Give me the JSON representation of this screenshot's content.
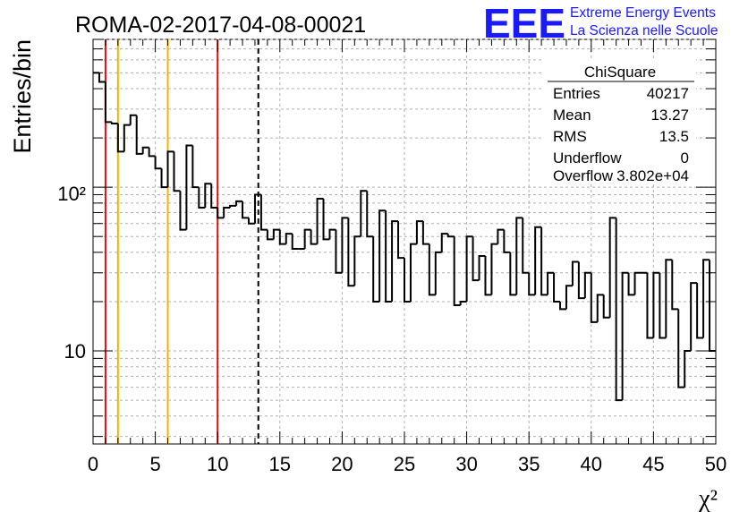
{
  "header": {
    "title": "ROMA-02-2017-04-08-00021",
    "logo_text": "EEE",
    "logo_line1": "Extreme Energy Events",
    "logo_line2": "La Scienza nelle Scuole"
  },
  "stats": {
    "name": "ChiSquare",
    "rows": [
      {
        "label": "Entries",
        "value": "40217"
      },
      {
        "label": "Mean",
        "value": "13.27"
      },
      {
        "label": "RMS",
        "value": "13.5"
      },
      {
        "label": "Underflow",
        "value": "0"
      },
      {
        "label": "Overflow",
        "value": "3.802e+04"
      }
    ]
  },
  "colors": {
    "histogram": "#000000",
    "red_lines": "#dd1111",
    "orange_lines": "#f0b400",
    "mean_line": "#000000",
    "grid": "#b0b0b0",
    "logo": "#1a1aff"
  },
  "chart_data": {
    "type": "histogram",
    "ylabel": "Entries/bin",
    "xlabel": "χ²",
    "xlim": [
      0,
      50
    ],
    "ylim": [
      2.7,
      800
    ],
    "yscale": "log",
    "grid": true,
    "bin_width": 0.5,
    "x_ticks": [
      "0",
      "5",
      "10",
      "15",
      "20",
      "25",
      "30",
      "35",
      "40",
      "45",
      "50"
    ],
    "y_ticks": [
      {
        "value": 10,
        "label": "10"
      },
      {
        "value": 100,
        "label": "10²"
      }
    ],
    "values": [
      500,
      440,
      250,
      245,
      165,
      240,
      275,
      160,
      175,
      155,
      130,
      100,
      165,
      95,
      55,
      180,
      100,
      75,
      105,
      75,
      65,
      75,
      77,
      82,
      65,
      60,
      90,
      55,
      48,
      55,
      45,
      52,
      42,
      42,
      55,
      45,
      85,
      48,
      55,
      30,
      65,
      25,
      50,
      95,
      50,
      20,
      72,
      20,
      62,
      37,
      20,
      45,
      62,
      45,
      22,
      40,
      52,
      50,
      19,
      20,
      50,
      27,
      38,
      22,
      45,
      55,
      40,
      22,
      65,
      30,
      22,
      57,
      22,
      30,
      20,
      18,
      25,
      35,
      21,
      30,
      15,
      22,
      16,
      65,
      5,
      30,
      22,
      30,
      30,
      12,
      30,
      12,
      36,
      18,
      6,
      10,
      26,
      12,
      36,
      10
    ],
    "vertical_lines": [
      {
        "x": 1,
        "color": "red"
      },
      {
        "x": 2,
        "color": "orange"
      },
      {
        "x": 6,
        "color": "orange"
      },
      {
        "x": 10,
        "color": "red"
      },
      {
        "x": 13.27,
        "color": "black",
        "style": "dashed"
      }
    ]
  }
}
